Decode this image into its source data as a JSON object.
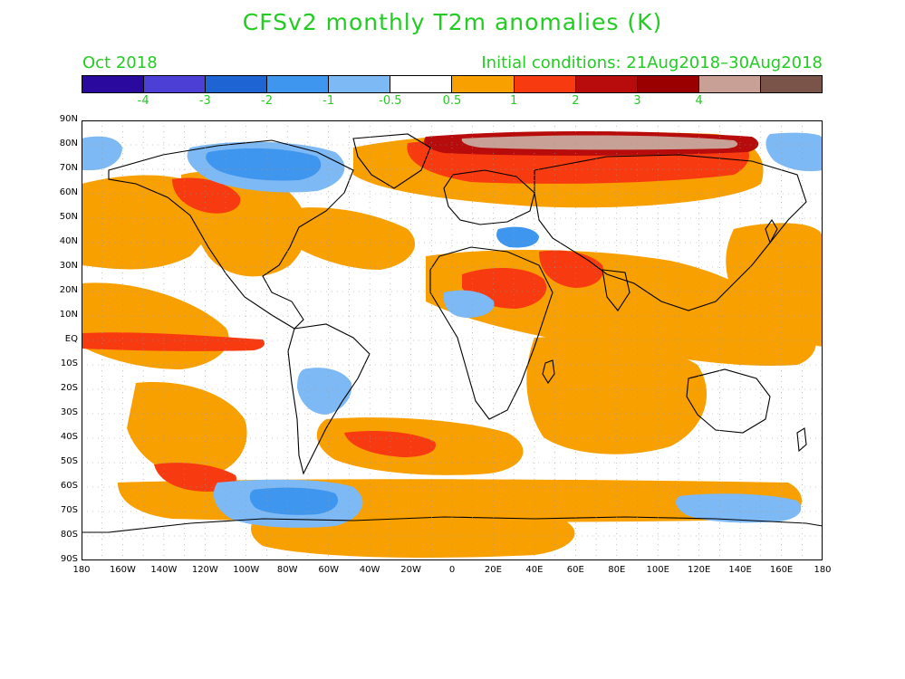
{
  "title": "CFSv2 monthly T2m anomalies (K)",
  "valid_month": "Oct 2018",
  "initial_conditions": "Initial conditions: 21Aug2018–30Aug2018",
  "colorbar": {
    "colors": [
      "#2a0a9e",
      "#4b3fd6",
      "#1e64d2",
      "#3f96ee",
      "#7db9f5",
      "#ffffff",
      "#f7a000",
      "#f83a10",
      "#b80b0b",
      "#9a0000",
      "#c8a096",
      "#7a5448"
    ],
    "labels": [
      "-4",
      "-3",
      "-2",
      "-1",
      "-0.5",
      "0.5",
      "1",
      "2",
      "3",
      "4"
    ]
  },
  "axes": {
    "lat_labels": [
      "90N",
      "80N",
      "70N",
      "60N",
      "50N",
      "40N",
      "30N",
      "20N",
      "10N",
      "EQ",
      "10S",
      "20S",
      "30S",
      "40S",
      "50S",
      "60S",
      "70S",
      "80S",
      "90S"
    ],
    "lon_labels": [
      "180",
      "160W",
      "140W",
      "120W",
      "100W",
      "80W",
      "60W",
      "40W",
      "20W",
      "0",
      "20E",
      "40E",
      "60E",
      "80E",
      "100E",
      "120E",
      "140E",
      "160E",
      "180"
    ]
  },
  "map": {
    "projection": "equirectangular",
    "lon_range": [
      -180,
      180
    ],
    "lat_range": [
      -90,
      90
    ],
    "grid": "dotted 10°",
    "colors": {
      "ocean": "#ffffff",
      "coast": "#000000",
      "warm1": "#f7a000",
      "warm2": "#f83a10",
      "warm3": "#b80b0b",
      "warm4": "#c8a096",
      "cool1": "#7db9f5",
      "cool2": "#3f96ee",
      "cool3": "#1e64d2"
    }
  }
}
